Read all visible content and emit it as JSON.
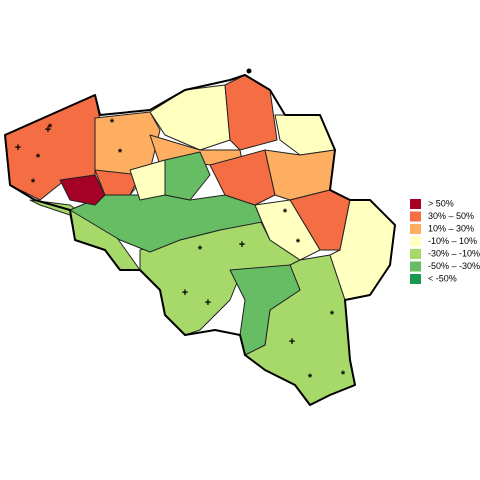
{
  "legend": {
    "items": [
      {
        "label": "> 50%",
        "color": "#a50026"
      },
      {
        "label": "30% – 50%",
        "color": "#f46d43"
      },
      {
        "label": "10% – 30%",
        "color": "#fdae61"
      },
      {
        "label": "-10% – 10%",
        "color": "#ffffbf"
      },
      {
        "label": "-30% – -10%",
        "color": "#a6d96a"
      },
      {
        "label": "-50% – -30%",
        "color": "#66bd63"
      },
      {
        "label": "< -50%",
        "color": "#1a9850"
      }
    ]
  },
  "markers": [
    "*",
    "*",
    "*",
    "*",
    "*",
    "*",
    "*",
    "*",
    "*",
    "*",
    "*",
    "+",
    "+",
    "+",
    "+",
    "+",
    "+"
  ]
}
